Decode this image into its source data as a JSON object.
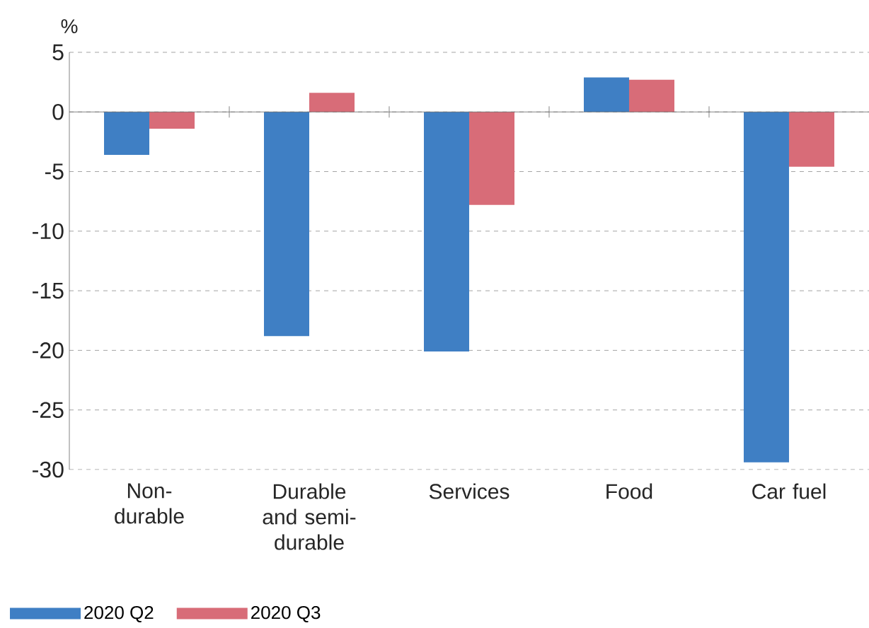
{
  "chart_data": {
    "type": "bar",
    "ylabel": "%",
    "categories": [
      "Non-durable",
      "Durable and semi-durable",
      "Services",
      "Food",
      "Car fuel"
    ],
    "series": [
      {
        "name": "2020 Q2",
        "color": "#3f7fc4",
        "values": [
          -3.6,
          -18.8,
          -20.1,
          2.9,
          -29.4
        ]
      },
      {
        "name": "2020 Q3",
        "color": "#d86c78",
        "values": [
          -1.4,
          1.6,
          -7.8,
          2.7,
          -4.6
        ]
      }
    ],
    "ylim": [
      -30,
      5
    ],
    "yticks": [
      -30,
      -25,
      -20,
      -15,
      -10,
      -5,
      0,
      5
    ],
    "grid": "y",
    "legend": "bottom"
  }
}
